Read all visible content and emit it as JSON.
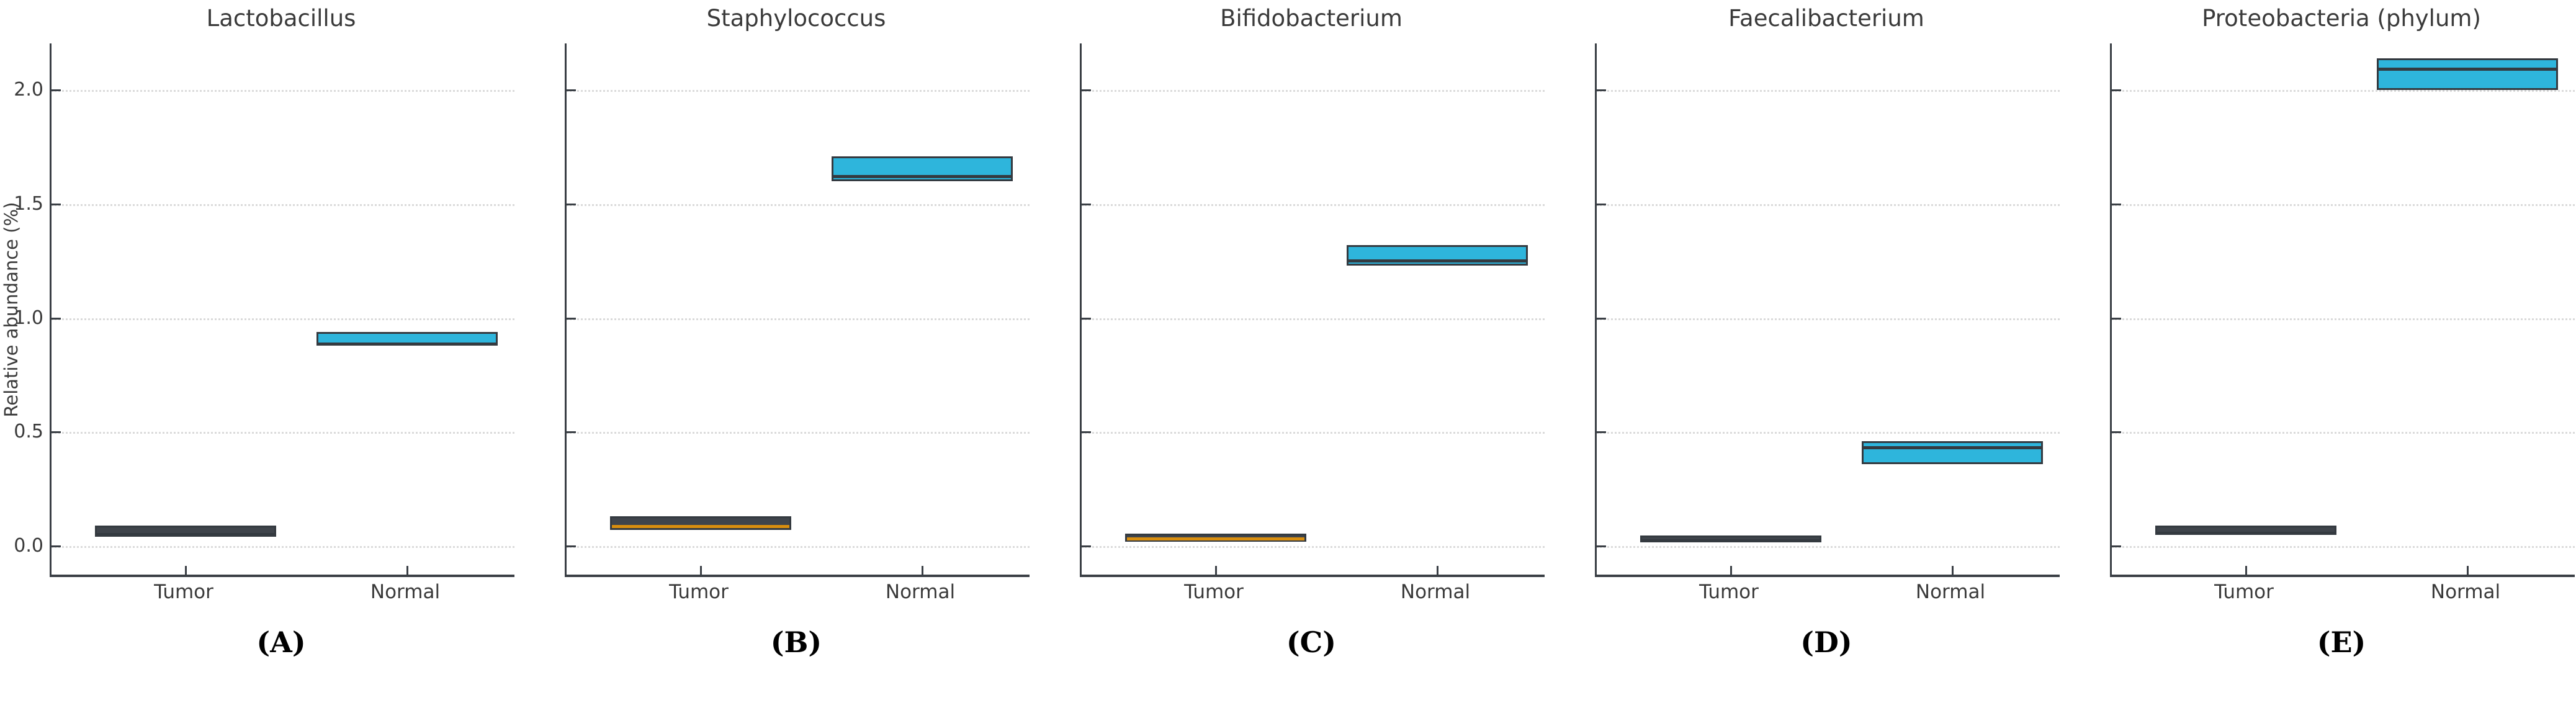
{
  "figure": {
    "background": "#ffffff",
    "description": "Five-panel boxplot figure comparing relative abundance between Tumor and Normal groups"
  },
  "colors": {
    "tumor_fill": "#3f444b",
    "normal_fill": "#2eb5dc",
    "box_edge": "#343a40",
    "median_dark": "#343a40",
    "median_orange": "#d98e0e",
    "grid": "#dadada",
    "axis": "#3a3f45",
    "text": "#3a3a3a"
  },
  "chart_data": {
    "type": "box",
    "ylabel": "Relative abundance (%)",
    "yticks": [
      0.0,
      0.5,
      1.0,
      1.5,
      2.0
    ],
    "ytick_labels": [
      "0.0",
      "0.5",
      "1.0",
      "1.5",
      "2.0"
    ],
    "ylim": [
      -0.12,
      2.2
    ],
    "grid": "horizontal-dotted",
    "legend": "none",
    "categories": [
      "Tumor",
      "Normal"
    ],
    "panels": [
      {
        "letter": "(A)",
        "title": "Lactobacillus",
        "boxes": [
          {
            "group": "Tumor",
            "q1": 0.04,
            "median": 0.06,
            "q3": 0.09,
            "fill": "tumor_fill",
            "median_color": "median_dark"
          },
          {
            "group": "Normal",
            "q1": 0.88,
            "median": 0.89,
            "q3": 0.94,
            "fill": "normal_fill",
            "median_color": "median_dark"
          }
        ]
      },
      {
        "letter": "(B)",
        "title": "Staphylococcus",
        "boxes": [
          {
            "group": "Tumor",
            "q1": 0.07,
            "median": 0.095,
            "q3": 0.13,
            "fill": "tumor_fill",
            "median_color": "median_orange"
          },
          {
            "group": "Normal",
            "q1": 1.6,
            "median": 1.63,
            "q3": 1.71,
            "fill": "normal_fill",
            "median_color": "median_dark"
          }
        ]
      },
      {
        "letter": "(C)",
        "title": "Bifidobacterium",
        "boxes": [
          {
            "group": "Tumor",
            "q1": 0.02,
            "median": 0.04,
            "q3": 0.055,
            "fill": "tumor_fill",
            "median_color": "median_orange"
          },
          {
            "group": "Normal",
            "q1": 1.23,
            "median": 1.26,
            "q3": 1.32,
            "fill": "normal_fill",
            "median_color": "median_dark"
          }
        ]
      },
      {
        "letter": "(D)",
        "title": "Faecalibacterium",
        "boxes": [
          {
            "group": "Tumor",
            "q1": 0.015,
            "median": 0.03,
            "q3": 0.045,
            "fill": "tumor_fill",
            "median_color": "median_dark"
          },
          {
            "group": "Normal",
            "q1": 0.36,
            "median": 0.44,
            "q3": 0.46,
            "fill": "normal_fill",
            "median_color": "median_dark"
          }
        ]
      },
      {
        "letter": "(E)",
        "title": "Proteobacteria (phylum)",
        "boxes": [
          {
            "group": "Tumor",
            "q1": 0.05,
            "median": 0.065,
            "q3": 0.09,
            "fill": "tumor_fill",
            "median_color": "median_dark"
          },
          {
            "group": "Normal",
            "q1": 2.0,
            "median": 2.1,
            "q3": 2.14,
            "fill": "normal_fill",
            "median_color": "median_dark"
          }
        ]
      }
    ]
  }
}
